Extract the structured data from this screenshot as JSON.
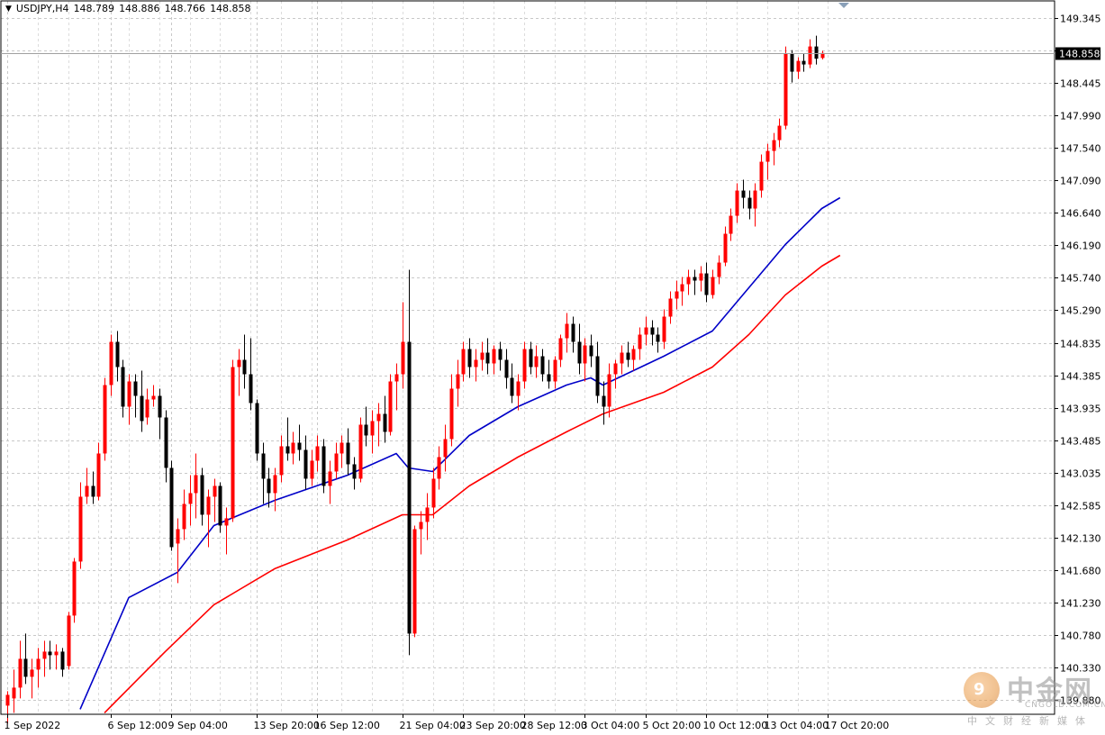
{
  "header": {
    "symbol": "USDJPY,H4",
    "open": "148.789",
    "high": "148.886",
    "low": "148.766",
    "close": "148.858"
  },
  "watermark": {
    "brand": "中金网",
    "domain": "CNGOLD.COM.CN",
    "sub": "中文财经新媒体"
  },
  "colors": {
    "bull": "#ff0000",
    "bear": "#000000",
    "ma_fast": "#0000c8",
    "ma_slow": "#ff0000",
    "grid": "#c8c8c8",
    "last_price_bg": "#000000"
  },
  "chart_data": {
    "type": "candlestick",
    "symbol": "USDJPY",
    "timeframe": "H4",
    "ylim": [
      139.6,
      149.45
    ],
    "y_ticks": [
      "149.345",
      "148.895",
      "148.445",
      "147.990",
      "147.540",
      "147.090",
      "146.640",
      "146.190",
      "145.740",
      "145.290",
      "144.835",
      "144.385",
      "143.935",
      "143.485",
      "143.035",
      "142.585",
      "142.130",
      "141.680",
      "141.230",
      "140.780",
      "140.330",
      "139.880"
    ],
    "x_ticks": [
      "1 Sep 2022",
      "6 Sep 12:00",
      "9 Sep 04:00",
      "13 Sep 20:00",
      "16 Sep 12:00",
      "21 Sep 04:00",
      "23 Sep 20:00",
      "28 Sep 12:00",
      "3 Oct 04:00",
      "5 Oct 20:00",
      "10 Oct 12:00",
      "13 Oct 04:00",
      "17 Oct 20:00"
    ],
    "x_tick_bar_index": [
      0,
      17,
      27,
      41,
      51,
      65,
      75,
      85,
      95,
      105,
      115,
      125,
      135
    ],
    "last_price": "148.858",
    "grid": true,
    "series_ohlc": [
      [
        139.8,
        140.0,
        139.55,
        139.95
      ],
      [
        139.9,
        140.3,
        139.7,
        140.05
      ],
      [
        140.05,
        140.7,
        139.9,
        140.45
      ],
      [
        140.45,
        140.8,
        140.1,
        140.2
      ],
      [
        140.2,
        140.45,
        139.9,
        140.3
      ],
      [
        140.3,
        140.6,
        140.05,
        140.45
      ],
      [
        140.45,
        140.7,
        140.2,
        140.55
      ],
      [
        140.55,
        140.7,
        140.3,
        140.5
      ],
      [
        140.5,
        140.65,
        140.3,
        140.55
      ],
      [
        140.55,
        140.6,
        140.2,
        140.3
      ],
      [
        140.35,
        141.1,
        140.3,
        141.05
      ],
      [
        141.05,
        141.85,
        140.95,
        141.8
      ],
      [
        141.8,
        142.9,
        141.7,
        142.7
      ],
      [
        142.7,
        143.1,
        142.6,
        142.85
      ],
      [
        142.85,
        143.05,
        142.6,
        142.7
      ],
      [
        142.7,
        143.45,
        142.65,
        143.3
      ],
      [
        143.3,
        144.35,
        143.2,
        144.25
      ],
      [
        144.25,
        144.95,
        144.1,
        144.85
      ],
      [
        144.85,
        145.0,
        144.3,
        144.5
      ],
      [
        144.5,
        144.6,
        143.8,
        143.95
      ],
      [
        143.95,
        144.4,
        143.7,
        144.3
      ],
      [
        144.3,
        144.4,
        143.8,
        144.1
      ],
      [
        144.1,
        144.45,
        143.6,
        143.75
      ],
      [
        143.8,
        144.2,
        143.7,
        144.05
      ],
      [
        144.05,
        144.25,
        143.95,
        144.1
      ],
      [
        144.1,
        144.2,
        143.5,
        143.8
      ],
      [
        143.8,
        143.9,
        142.9,
        143.1
      ],
      [
        143.1,
        143.2,
        141.95,
        142.0
      ],
      [
        142.05,
        142.4,
        141.5,
        142.25
      ],
      [
        142.25,
        142.8,
        142.1,
        142.6
      ],
      [
        142.6,
        143.0,
        142.3,
        142.75
      ],
      [
        142.75,
        143.3,
        142.4,
        143.0
      ],
      [
        143.0,
        143.1,
        142.3,
        142.45
      ],
      [
        142.45,
        142.8,
        142.0,
        142.7
      ],
      [
        142.7,
        142.95,
        142.35,
        142.85
      ],
      [
        142.85,
        142.9,
        142.2,
        142.3
      ],
      [
        142.3,
        142.55,
        141.9,
        142.4
      ],
      [
        142.4,
        144.6,
        142.35,
        144.5
      ],
      [
        144.5,
        144.75,
        144.1,
        144.6
      ],
      [
        144.6,
        144.95,
        144.2,
        144.4
      ],
      [
        144.4,
        144.9,
        143.9,
        144.0
      ],
      [
        144.0,
        144.05,
        143.2,
        143.3
      ],
      [
        143.3,
        143.45,
        142.6,
        142.95
      ],
      [
        142.95,
        143.1,
        142.55,
        142.75
      ],
      [
        142.75,
        143.1,
        142.5,
        143.0
      ],
      [
        143.0,
        143.55,
        142.9,
        143.4
      ],
      [
        143.4,
        143.8,
        143.2,
        143.3
      ],
      [
        143.3,
        143.6,
        143.15,
        143.45
      ],
      [
        143.45,
        143.7,
        143.2,
        143.35
      ],
      [
        143.35,
        143.55,
        142.8,
        142.95
      ],
      [
        142.95,
        143.35,
        142.85,
        143.2
      ],
      [
        143.2,
        143.55,
        143.05,
        143.4
      ],
      [
        143.4,
        143.5,
        142.75,
        142.85
      ],
      [
        142.85,
        143.2,
        142.6,
        143.05
      ],
      [
        143.05,
        143.45,
        142.95,
        143.3
      ],
      [
        143.3,
        143.55,
        143.1,
        143.45
      ],
      [
        143.45,
        143.65,
        143.0,
        143.15
      ],
      [
        143.15,
        143.25,
        142.8,
        142.95
      ],
      [
        142.95,
        143.8,
        142.9,
        143.7
      ],
      [
        143.7,
        143.95,
        143.4,
        143.55
      ],
      [
        143.55,
        143.9,
        143.3,
        143.75
      ],
      [
        143.75,
        144.0,
        143.4,
        143.85
      ],
      [
        143.85,
        144.1,
        143.45,
        143.6
      ],
      [
        143.6,
        144.4,
        143.55,
        144.3
      ],
      [
        144.3,
        144.55,
        143.9,
        144.4
      ],
      [
        144.4,
        145.4,
        144.2,
        144.85
      ],
      [
        144.85,
        145.85,
        140.5,
        140.8
      ],
      [
        140.8,
        142.3,
        140.75,
        142.25
      ],
      [
        142.25,
        142.5,
        141.9,
        142.35
      ],
      [
        142.35,
        142.75,
        142.1,
        142.55
      ],
      [
        142.55,
        143.1,
        142.4,
        142.95
      ],
      [
        142.95,
        143.4,
        142.8,
        143.25
      ],
      [
        143.25,
        143.7,
        143.05,
        143.5
      ],
      [
        143.5,
        144.4,
        143.4,
        144.2
      ],
      [
        144.2,
        144.6,
        143.95,
        144.4
      ],
      [
        144.4,
        144.85,
        144.3,
        144.75
      ],
      [
        144.75,
        144.9,
        144.35,
        144.5
      ],
      [
        144.5,
        144.75,
        144.3,
        144.6
      ],
      [
        144.6,
        144.85,
        144.45,
        144.7
      ],
      [
        144.7,
        144.9,
        144.4,
        144.55
      ],
      [
        144.55,
        144.8,
        144.4,
        144.75
      ],
      [
        144.75,
        144.85,
        144.45,
        144.6
      ],
      [
        144.6,
        144.75,
        144.2,
        144.35
      ],
      [
        144.35,
        144.55,
        144.0,
        144.1
      ],
      [
        144.1,
        144.4,
        143.9,
        144.3
      ],
      [
        144.3,
        144.85,
        144.2,
        144.75
      ],
      [
        144.75,
        144.85,
        144.4,
        144.5
      ],
      [
        144.5,
        144.8,
        144.35,
        144.65
      ],
      [
        144.65,
        144.75,
        144.3,
        144.4
      ],
      [
        144.4,
        144.6,
        144.2,
        144.3
      ],
      [
        144.3,
        144.65,
        144.2,
        144.6
      ],
      [
        144.6,
        144.95,
        144.5,
        144.9
      ],
      [
        144.9,
        145.25,
        144.7,
        145.1
      ],
      [
        145.1,
        145.2,
        144.7,
        144.85
      ],
      [
        144.85,
        145.1,
        144.4,
        144.55
      ],
      [
        144.55,
        144.9,
        144.3,
        144.8
      ],
      [
        144.8,
        144.95,
        144.5,
        144.65
      ],
      [
        144.65,
        144.85,
        144.0,
        144.1
      ],
      [
        144.1,
        144.3,
        143.7,
        143.95
      ],
      [
        143.95,
        144.55,
        143.8,
        144.4
      ],
      [
        144.4,
        144.6,
        144.2,
        144.55
      ],
      [
        144.55,
        144.8,
        144.4,
        144.7
      ],
      [
        144.7,
        144.85,
        144.5,
        144.6
      ],
      [
        144.6,
        144.8,
        144.45,
        144.75
      ],
      [
        144.75,
        145.05,
        144.6,
        144.95
      ],
      [
        144.95,
        145.2,
        144.8,
        145.05
      ],
      [
        145.05,
        145.15,
        144.8,
        144.95
      ],
      [
        144.95,
        145.05,
        144.7,
        144.85
      ],
      [
        144.85,
        145.3,
        144.75,
        145.2
      ],
      [
        145.2,
        145.55,
        145.1,
        145.45
      ],
      [
        145.45,
        145.7,
        145.3,
        145.55
      ],
      [
        145.55,
        145.75,
        145.35,
        145.65
      ],
      [
        145.65,
        145.85,
        145.5,
        145.75
      ],
      [
        145.75,
        145.85,
        145.5,
        145.7
      ],
      [
        145.7,
        145.9,
        145.55,
        145.8
      ],
      [
        145.8,
        145.95,
        145.4,
        145.5
      ],
      [
        145.5,
        145.85,
        145.45,
        145.75
      ],
      [
        145.75,
        146.05,
        145.65,
        145.95
      ],
      [
        145.95,
        146.45,
        145.9,
        146.35
      ],
      [
        146.35,
        146.7,
        146.25,
        146.6
      ],
      [
        146.6,
        147.05,
        146.5,
        146.95
      ],
      [
        146.95,
        147.1,
        146.7,
        146.85
      ],
      [
        146.85,
        146.95,
        146.55,
        146.7
      ],
      [
        146.7,
        147.05,
        146.45,
        146.95
      ],
      [
        146.95,
        147.45,
        146.85,
        147.35
      ],
      [
        147.35,
        147.6,
        147.1,
        147.5
      ],
      [
        147.5,
        147.75,
        147.3,
        147.65
      ],
      [
        147.65,
        147.95,
        147.55,
        147.85
      ],
      [
        147.85,
        148.95,
        147.8,
        148.85
      ],
      [
        148.85,
        148.9,
        148.45,
        148.6
      ],
      [
        148.6,
        148.8,
        148.5,
        148.75
      ],
      [
        148.75,
        148.85,
        148.6,
        148.7
      ],
      [
        148.7,
        149.05,
        148.65,
        148.95
      ],
      [
        148.95,
        149.1,
        148.7,
        148.78
      ],
      [
        148.79,
        148.89,
        148.77,
        148.86
      ]
    ],
    "series": [
      {
        "color": "#0000c8",
        "points": [
          [
            12,
            139.75
          ],
          [
            20,
            141.3
          ],
          [
            28,
            141.65
          ],
          [
            34,
            142.3
          ],
          [
            44,
            142.65
          ],
          [
            56,
            143.0
          ],
          [
            64,
            143.3
          ],
          [
            66,
            143.1
          ],
          [
            70,
            143.05
          ],
          [
            76,
            143.55
          ],
          [
            84,
            143.95
          ],
          [
            92,
            144.25
          ],
          [
            96,
            144.35
          ],
          [
            98,
            144.25
          ],
          [
            108,
            144.65
          ],
          [
            116,
            145.0
          ],
          [
            122,
            145.6
          ],
          [
            128,
            146.2
          ],
          [
            134,
            146.7
          ],
          [
            137,
            146.85
          ]
        ]
      },
      {
        "color": "#ff0000",
        "points": [
          [
            16,
            139.7
          ],
          [
            26,
            140.55
          ],
          [
            34,
            141.2
          ],
          [
            44,
            141.7
          ],
          [
            56,
            142.1
          ],
          [
            65,
            142.45
          ],
          [
            70,
            142.45
          ],
          [
            76,
            142.85
          ],
          [
            84,
            143.25
          ],
          [
            92,
            143.6
          ],
          [
            98,
            143.85
          ],
          [
            108,
            144.15
          ],
          [
            116,
            144.5
          ],
          [
            122,
            144.95
          ],
          [
            128,
            145.5
          ],
          [
            134,
            145.9
          ],
          [
            137,
            146.05
          ]
        ]
      }
    ]
  }
}
